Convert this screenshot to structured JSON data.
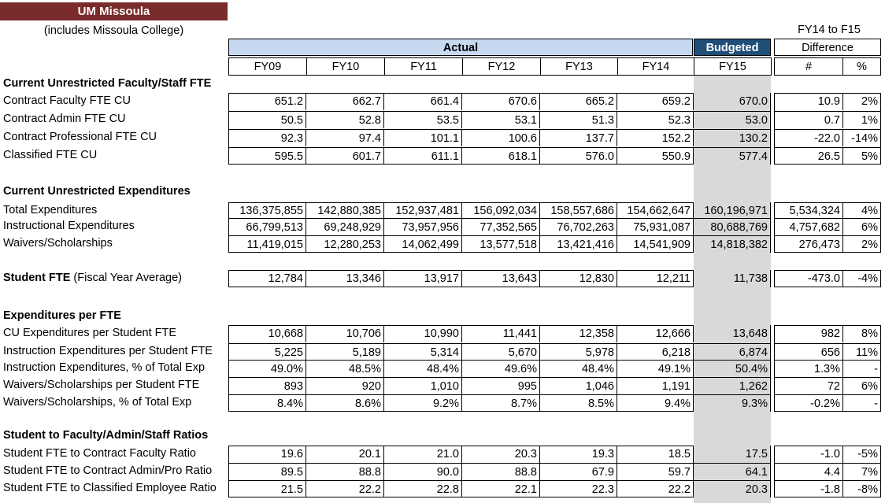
{
  "title": "UM Missoula",
  "subtitle": "(includes Missoula College)",
  "headers": {
    "actual": "Actual",
    "budgeted": "Budgeted",
    "diff_top": "FY14 to F15",
    "difference": "Difference",
    "years": [
      "FY09",
      "FY10",
      "FY11",
      "FY12",
      "FY13",
      "FY14",
      "FY15"
    ],
    "num": "#",
    "pct": "%"
  },
  "sections": [
    {
      "title": "Current Unrestricted Faculty/Staff FTE",
      "rows": [
        {
          "label": "Contract Faculty FTE CU",
          "values": [
            "651.2",
            "662.7",
            "661.4",
            "670.6",
            "665.2",
            "659.2",
            "670.0"
          ],
          "num": "10.9",
          "pct": "2%"
        },
        {
          "label": "Contract Admin FTE CU",
          "values": [
            "50.5",
            "52.8",
            "53.5",
            "53.1",
            "51.3",
            "52.3",
            "53.0"
          ],
          "num": "0.7",
          "pct": "1%"
        },
        {
          "label": "Contract Professional FTE CU",
          "values": [
            "92.3",
            "97.4",
            "101.1",
            "100.6",
            "137.7",
            "152.2",
            "130.2"
          ],
          "num": "-22.0",
          "pct": "-14%"
        },
        {
          "label": "Classified FTE CU",
          "values": [
            "595.5",
            "601.7",
            "611.1",
            "618.1",
            "576.0",
            "550.9",
            "577.4"
          ],
          "num": "26.5",
          "pct": "5%"
        }
      ]
    },
    {
      "title": "Current Unrestricted Expenditures",
      "rows": [
        {
          "label": "Total Expenditures",
          "values": [
            "136,375,855",
            "142,880,385",
            "152,937,481",
            "156,092,034",
            "158,557,686",
            "154,662,647",
            "160,196,971"
          ],
          "num": "5,534,324",
          "pct": "4%"
        },
        {
          "label": "Instructional Expenditures",
          "values": [
            "66,799,513",
            "69,248,929",
            "73,957,956",
            "77,352,565",
            "76,702,263",
            "75,931,087",
            "80,688,769"
          ],
          "num": "4,757,682",
          "pct": "6%"
        },
        {
          "label": "Waivers/Scholarships",
          "values": [
            "11,419,015",
            "12,280,253",
            "14,062,499",
            "13,577,518",
            "13,421,416",
            "14,541,909",
            "14,818,382"
          ],
          "num": "276,473",
          "pct": "2%"
        }
      ]
    },
    {
      "title": "",
      "rows": [
        {
          "label_bold": "Student FTE",
          "label": " (Fiscal Year Average)",
          "values": [
            "12,784",
            "13,346",
            "13,917",
            "13,643",
            "12,830",
            "12,211",
            "11,738"
          ],
          "num": "-473.0",
          "pct": "-4%"
        }
      ]
    },
    {
      "title": "Expenditures per FTE",
      "rows": [
        {
          "label": "CU Expenditures per Student FTE",
          "values": [
            "10,668",
            "10,706",
            "10,990",
            "11,441",
            "12,358",
            "12,666",
            "13,648"
          ],
          "num": "982",
          "pct": "8%"
        },
        {
          "label": "Instruction Expenditures per Student FTE",
          "values": [
            "5,225",
            "5,189",
            "5,314",
            "5,670",
            "5,978",
            "6,218",
            "6,874"
          ],
          "num": "656",
          "pct": "11%"
        },
        {
          "label": "Instruction Expenditures, % of Total Exp",
          "values": [
            "49.0%",
            "48.5%",
            "48.4%",
            "49.6%",
            "48.4%",
            "49.1%",
            "50.4%"
          ],
          "num": "1.3%",
          "pct": "-"
        },
        {
          "label": "Waivers/Scholarships per Student FTE",
          "values": [
            "893",
            "920",
            "1,010",
            "995",
            "1,046",
            "1,191",
            "1,262"
          ],
          "num": "72",
          "pct": "6%"
        },
        {
          "label": "Waivers/Scholarships, % of Total Exp",
          "values": [
            "8.4%",
            "8.6%",
            "9.2%",
            "8.7%",
            "8.5%",
            "9.4%",
            "9.3%"
          ],
          "num": "-0.2%",
          "pct": "-"
        }
      ]
    },
    {
      "title": "Student to Faculty/Admin/Staff Ratios",
      "rows": [
        {
          "label": "Student FTE to Contract Faculty Ratio",
          "values": [
            "19.6",
            "20.1",
            "21.0",
            "20.3",
            "19.3",
            "18.5",
            "17.5"
          ],
          "num": "-1.0",
          "pct": "-5%"
        },
        {
          "label": "Student FTE to Contract Admin/Pro Ratio",
          "values": [
            "89.5",
            "88.8",
            "90.0",
            "88.8",
            "67.9",
            "59.7",
            "64.1"
          ],
          "num": "4.4",
          "pct": "7%"
        },
        {
          "label": "Student FTE to Classified Employee Ratio",
          "values": [
            "21.5",
            "22.2",
            "22.8",
            "22.1",
            "22.3",
            "22.2",
            "20.3"
          ],
          "num": "-1.8",
          "pct": "-8%"
        }
      ]
    }
  ]
}
